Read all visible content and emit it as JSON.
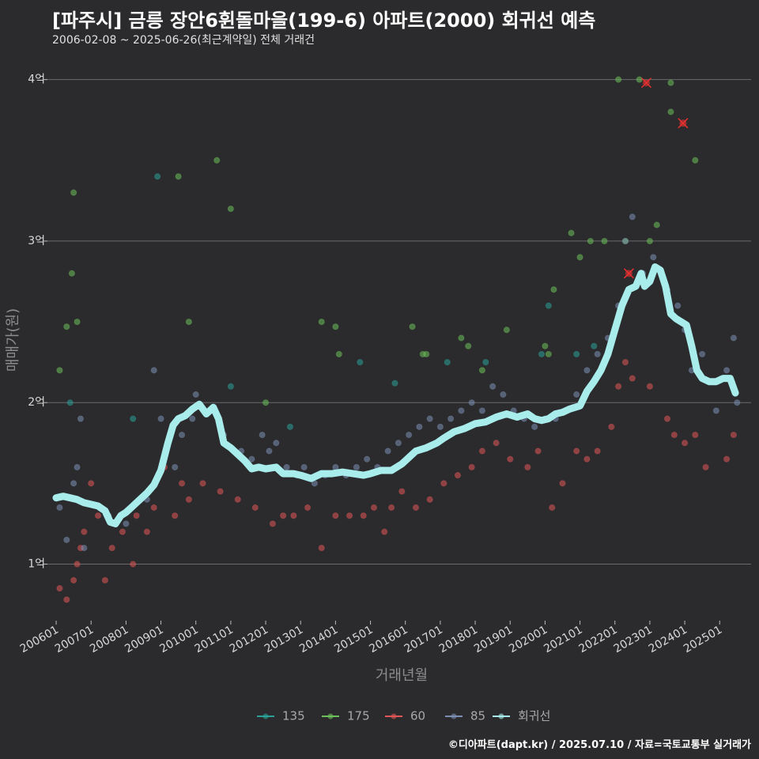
{
  "header": {
    "title": "[파주시] 금릉 장안6휜돌마을(199-6) 아파트(2000) 회귀선 예측",
    "subtitle": "2006-02-08 ~ 2025-06-26(최근계약일) 전체 거래건"
  },
  "footer": "©디아파트(dapt.kr) / 2025.07.10 / 자료=국토교통부 실거래가",
  "colors": {
    "background": "#2b2b2d",
    "s135": "#2aa198",
    "s175": "#6cbf5a",
    "s60": "#e05555",
    "s85": "#7b8fb5",
    "regression": "#a8ecec",
    "cancelled": "#e83030"
  },
  "chart_data": {
    "type": "scatter",
    "title": "[파주시] 금릉 장안6휜돌마을(199-6) 아파트(2000) 회귀선 예측",
    "xlabel": "거래년월",
    "ylabel": "매매가(원)",
    "ylim": [
      0.65,
      4.15
    ],
    "xlim": [
      2005.75,
      2025.9
    ],
    "y_ticks": [
      {
        "value": 1,
        "label": "1억"
      },
      {
        "value": 2,
        "label": "2억"
      },
      {
        "value": 3,
        "label": "3억"
      },
      {
        "value": 4,
        "label": "4억"
      }
    ],
    "x_ticks": [
      {
        "value": 2006,
        "label": "200601"
      },
      {
        "value": 2007,
        "label": "200701"
      },
      {
        "value": 2008,
        "label": "200801"
      },
      {
        "value": 2009,
        "label": "200901"
      },
      {
        "value": 2010,
        "label": "201001"
      },
      {
        "value": 2011,
        "label": "201101"
      },
      {
        "value": 2012,
        "label": "201201"
      },
      {
        "value": 2013,
        "label": "201301"
      },
      {
        "value": 2014,
        "label": "201401"
      },
      {
        "value": 2015,
        "label": "201501"
      },
      {
        "value": 2016,
        "label": "201601"
      },
      {
        "value": 2017,
        "label": "201701"
      },
      {
        "value": 2018,
        "label": "201801"
      },
      {
        "value": 2019,
        "label": "201901"
      },
      {
        "value": 2020,
        "label": "202001"
      },
      {
        "value": 2021,
        "label": "202101"
      },
      {
        "value": 2022,
        "label": "202201"
      },
      {
        "value": 2023,
        "label": "202301"
      },
      {
        "value": 2024,
        "label": "202401"
      },
      {
        "value": 2025,
        "label": "202501"
      }
    ],
    "grid": true,
    "legend_position": "bottom",
    "legend": [
      {
        "name": "135",
        "color_key": "s135"
      },
      {
        "name": "175",
        "color_key": "s175"
      },
      {
        "name": "60",
        "color_key": "s60"
      },
      {
        "name": "85",
        "color_key": "s85"
      },
      {
        "name": "회귀선",
        "color_key": "regression"
      }
    ],
    "series": [
      {
        "name": "135",
        "color_key": "s135",
        "points": [
          [
            2006.4,
            2.0
          ],
          [
            2008.2,
            1.9
          ],
          [
            2008.9,
            3.4
          ],
          [
            2011.0,
            2.1
          ],
          [
            2012.7,
            1.85
          ],
          [
            2014.7,
            2.25
          ],
          [
            2015.7,
            2.12
          ],
          [
            2017.2,
            2.25
          ],
          [
            2018.3,
            2.25
          ],
          [
            2019.9,
            2.3
          ],
          [
            2020.1,
            2.6
          ],
          [
            2020.9,
            2.3
          ],
          [
            2021.4,
            2.35
          ]
        ]
      },
      {
        "name": "175",
        "color_key": "s175",
        "points": [
          [
            2006.1,
            2.2
          ],
          [
            2006.3,
            2.47
          ],
          [
            2006.45,
            2.8
          ],
          [
            2006.5,
            3.3
          ],
          [
            2006.6,
            2.5
          ],
          [
            2009.5,
            3.4
          ],
          [
            2009.8,
            2.5
          ],
          [
            2010.6,
            3.5
          ],
          [
            2011.0,
            3.2
          ],
          [
            2012.0,
            2.0
          ],
          [
            2013.6,
            2.5
          ],
          [
            2014.0,
            2.47
          ],
          [
            2014.1,
            2.3
          ],
          [
            2016.2,
            2.47
          ],
          [
            2016.5,
            2.3
          ],
          [
            2016.6,
            2.3
          ],
          [
            2017.6,
            2.4
          ],
          [
            2017.8,
            2.35
          ],
          [
            2018.2,
            2.2
          ],
          [
            2018.9,
            2.45
          ],
          [
            2020.0,
            2.35
          ],
          [
            2020.1,
            2.3
          ],
          [
            2020.25,
            2.7
          ],
          [
            2020.75,
            3.05
          ],
          [
            2021.0,
            2.9
          ],
          [
            2021.3,
            3.0
          ],
          [
            2021.7,
            3.0
          ],
          [
            2022.1,
            4.0
          ],
          [
            2022.3,
            3.0
          ],
          [
            2022.7,
            4.0
          ],
          [
            2023.0,
            3.0
          ],
          [
            2023.2,
            3.1
          ],
          [
            2023.6,
            3.8
          ],
          [
            2023.6,
            3.98
          ],
          [
            2024.3,
            3.5
          ]
        ]
      },
      {
        "name": "60",
        "color_key": "s60",
        "points": [
          [
            2006.1,
            0.85
          ],
          [
            2006.3,
            0.78
          ],
          [
            2006.5,
            0.9
          ],
          [
            2006.6,
            1.0
          ],
          [
            2006.7,
            1.1
          ],
          [
            2006.8,
            1.2
          ],
          [
            2007.0,
            1.5
          ],
          [
            2007.2,
            1.3
          ],
          [
            2007.4,
            0.9
          ],
          [
            2007.6,
            1.1
          ],
          [
            2007.9,
            1.2
          ],
          [
            2008.2,
            1.0
          ],
          [
            2008.3,
            1.3
          ],
          [
            2008.6,
            1.2
          ],
          [
            2008.8,
            1.35
          ],
          [
            2009.1,
            1.6
          ],
          [
            2009.4,
            1.3
          ],
          [
            2009.6,
            1.5
          ],
          [
            2009.8,
            1.4
          ],
          [
            2010.2,
            1.5
          ],
          [
            2010.7,
            1.45
          ],
          [
            2011.2,
            1.4
          ],
          [
            2011.7,
            1.35
          ],
          [
            2012.2,
            1.25
          ],
          [
            2012.5,
            1.3
          ],
          [
            2012.8,
            1.3
          ],
          [
            2013.2,
            1.35
          ],
          [
            2013.6,
            1.1
          ],
          [
            2014.0,
            1.3
          ],
          [
            2014.4,
            1.3
          ],
          [
            2014.8,
            1.3
          ],
          [
            2015.1,
            1.35
          ],
          [
            2015.4,
            1.2
          ],
          [
            2015.6,
            1.35
          ],
          [
            2015.9,
            1.45
          ],
          [
            2016.3,
            1.35
          ],
          [
            2016.7,
            1.4
          ],
          [
            2017.1,
            1.5
          ],
          [
            2017.5,
            1.55
          ],
          [
            2017.9,
            1.6
          ],
          [
            2018.2,
            1.7
          ],
          [
            2018.6,
            1.75
          ],
          [
            2019.0,
            1.65
          ],
          [
            2019.5,
            1.6
          ],
          [
            2019.8,
            1.7
          ],
          [
            2020.2,
            1.35
          ],
          [
            2020.5,
            1.5
          ],
          [
            2020.9,
            1.7
          ],
          [
            2021.2,
            1.65
          ],
          [
            2021.5,
            1.7
          ],
          [
            2021.9,
            1.85
          ],
          [
            2022.1,
            2.1
          ],
          [
            2022.3,
            2.25
          ],
          [
            2022.5,
            2.15
          ],
          [
            2023.0,
            2.1
          ],
          [
            2023.5,
            1.9
          ],
          [
            2023.7,
            1.8
          ],
          [
            2024.0,
            1.75
          ],
          [
            2024.3,
            1.8
          ],
          [
            2024.6,
            1.6
          ],
          [
            2025.2,
            1.65
          ],
          [
            2025.4,
            1.8
          ]
        ]
      },
      {
        "name": "85",
        "color_key": "s85",
        "points": [
          [
            2006.1,
            1.35
          ],
          [
            2006.3,
            1.15
          ],
          [
            2006.5,
            1.5
          ],
          [
            2006.6,
            1.6
          ],
          [
            2006.7,
            1.9
          ],
          [
            2006.8,
            1.1
          ],
          [
            2007.5,
            1.3
          ],
          [
            2008.0,
            1.25
          ],
          [
            2008.6,
            1.4
          ],
          [
            2008.8,
            2.2
          ],
          [
            2009.0,
            1.9
          ],
          [
            2009.4,
            1.6
          ],
          [
            2009.6,
            1.8
          ],
          [
            2009.9,
            1.9
          ],
          [
            2010.0,
            2.05
          ],
          [
            2010.4,
            1.95
          ],
          [
            2010.8,
            1.8
          ],
          [
            2011.3,
            1.7
          ],
          [
            2011.6,
            1.65
          ],
          [
            2011.9,
            1.8
          ],
          [
            2012.1,
            1.7
          ],
          [
            2012.3,
            1.75
          ],
          [
            2012.6,
            1.6
          ],
          [
            2012.9,
            1.55
          ],
          [
            2013.1,
            1.6
          ],
          [
            2013.4,
            1.5
          ],
          [
            2013.7,
            1.55
          ],
          [
            2014.0,
            1.6
          ],
          [
            2014.3,
            1.55
          ],
          [
            2014.6,
            1.6
          ],
          [
            2014.9,
            1.65
          ],
          [
            2015.2,
            1.6
          ],
          [
            2015.5,
            1.7
          ],
          [
            2015.8,
            1.75
          ],
          [
            2016.1,
            1.8
          ],
          [
            2016.4,
            1.85
          ],
          [
            2016.7,
            1.9
          ],
          [
            2017.0,
            1.85
          ],
          [
            2017.3,
            1.9
          ],
          [
            2017.6,
            1.95
          ],
          [
            2017.9,
            2.0
          ],
          [
            2018.2,
            1.95
          ],
          [
            2018.5,
            2.1
          ],
          [
            2018.8,
            2.05
          ],
          [
            2019.1,
            1.95
          ],
          [
            2019.4,
            1.9
          ],
          [
            2019.7,
            1.85
          ],
          [
            2020.0,
            1.9
          ],
          [
            2020.3,
            1.9
          ],
          [
            2020.6,
            1.95
          ],
          [
            2020.9,
            2.05
          ],
          [
            2021.2,
            2.2
          ],
          [
            2021.5,
            2.3
          ],
          [
            2021.8,
            2.4
          ],
          [
            2022.1,
            2.6
          ],
          [
            2022.3,
            3.0
          ],
          [
            2022.5,
            3.15
          ],
          [
            2022.8,
            2.8
          ],
          [
            2023.1,
            2.9
          ],
          [
            2023.5,
            2.7
          ],
          [
            2023.8,
            2.6
          ],
          [
            2024.0,
            2.45
          ],
          [
            2024.2,
            2.2
          ],
          [
            2024.5,
            2.3
          ],
          [
            2024.9,
            1.95
          ],
          [
            2025.2,
            2.2
          ],
          [
            2025.4,
            2.4
          ],
          [
            2025.5,
            2.0
          ]
        ]
      }
    ],
    "cancelled_points": [
      [
        2022.4,
        2.8
      ],
      [
        2022.9,
        3.98
      ],
      [
        2023.95,
        3.73
      ]
    ],
    "regression": {
      "name": "회귀선",
      "points": [
        [
          2006.0,
          1.41
        ],
        [
          2006.2,
          1.42
        ],
        [
          2006.4,
          1.41
        ],
        [
          2006.6,
          1.4
        ],
        [
          2006.8,
          1.38
        ],
        [
          2007.0,
          1.37
        ],
        [
          2007.2,
          1.36
        ],
        [
          2007.4,
          1.33
        ],
        [
          2007.55,
          1.26
        ],
        [
          2007.7,
          1.25
        ],
        [
          2007.85,
          1.3
        ],
        [
          2008.0,
          1.32
        ],
        [
          2008.2,
          1.36
        ],
        [
          2008.4,
          1.4
        ],
        [
          2008.6,
          1.44
        ],
        [
          2008.8,
          1.49
        ],
        [
          2009.0,
          1.58
        ],
        [
          2009.2,
          1.75
        ],
        [
          2009.35,
          1.86
        ],
        [
          2009.5,
          1.9
        ],
        [
          2009.7,
          1.92
        ],
        [
          2009.9,
          1.96
        ],
        [
          2010.1,
          1.99
        ],
        [
          2010.3,
          1.93
        ],
        [
          2010.5,
          1.97
        ],
        [
          2010.65,
          1.9
        ],
        [
          2010.8,
          1.75
        ],
        [
          2011.0,
          1.72
        ],
        [
          2011.2,
          1.68
        ],
        [
          2011.4,
          1.64
        ],
        [
          2011.6,
          1.59
        ],
        [
          2011.8,
          1.6
        ],
        [
          2012.0,
          1.59
        ],
        [
          2012.3,
          1.6
        ],
        [
          2012.5,
          1.56
        ],
        [
          2012.8,
          1.56
        ],
        [
          2013.0,
          1.55
        ],
        [
          2013.3,
          1.53
        ],
        [
          2013.6,
          1.56
        ],
        [
          2013.9,
          1.56
        ],
        [
          2014.2,
          1.57
        ],
        [
          2014.5,
          1.56
        ],
        [
          2014.8,
          1.55
        ],
        [
          2015.0,
          1.56
        ],
        [
          2015.3,
          1.58
        ],
        [
          2015.6,
          1.58
        ],
        [
          2015.9,
          1.62
        ],
        [
          2016.1,
          1.66
        ],
        [
          2016.3,
          1.7
        ],
        [
          2016.6,
          1.72
        ],
        [
          2016.9,
          1.75
        ],
        [
          2017.1,
          1.78
        ],
        [
          2017.4,
          1.82
        ],
        [
          2017.7,
          1.84
        ],
        [
          2018.0,
          1.87
        ],
        [
          2018.3,
          1.88
        ],
        [
          2018.6,
          1.91
        ],
        [
          2018.9,
          1.93
        ],
        [
          2019.2,
          1.91
        ],
        [
          2019.5,
          1.93
        ],
        [
          2019.7,
          1.9
        ],
        [
          2019.9,
          1.89
        ],
        [
          2020.1,
          1.9
        ],
        [
          2020.3,
          1.93
        ],
        [
          2020.5,
          1.94
        ],
        [
          2020.7,
          1.96
        ],
        [
          2021.0,
          1.98
        ],
        [
          2021.2,
          2.07
        ],
        [
          2021.4,
          2.13
        ],
        [
          2021.6,
          2.2
        ],
        [
          2021.8,
          2.3
        ],
        [
          2022.0,
          2.45
        ],
        [
          2022.2,
          2.6
        ],
        [
          2022.4,
          2.7
        ],
        [
          2022.6,
          2.72
        ],
        [
          2022.75,
          2.8
        ],
        [
          2022.85,
          2.72
        ],
        [
          2023.0,
          2.75
        ],
        [
          2023.15,
          2.84
        ],
        [
          2023.3,
          2.82
        ],
        [
          2023.45,
          2.72
        ],
        [
          2023.6,
          2.55
        ],
        [
          2023.75,
          2.52
        ],
        [
          2023.9,
          2.5
        ],
        [
          2024.05,
          2.48
        ],
        [
          2024.2,
          2.35
        ],
        [
          2024.35,
          2.2
        ],
        [
          2024.5,
          2.15
        ],
        [
          2024.7,
          2.13
        ],
        [
          2024.9,
          2.13
        ],
        [
          2025.1,
          2.15
        ],
        [
          2025.3,
          2.15
        ],
        [
          2025.45,
          2.06
        ]
      ]
    }
  }
}
